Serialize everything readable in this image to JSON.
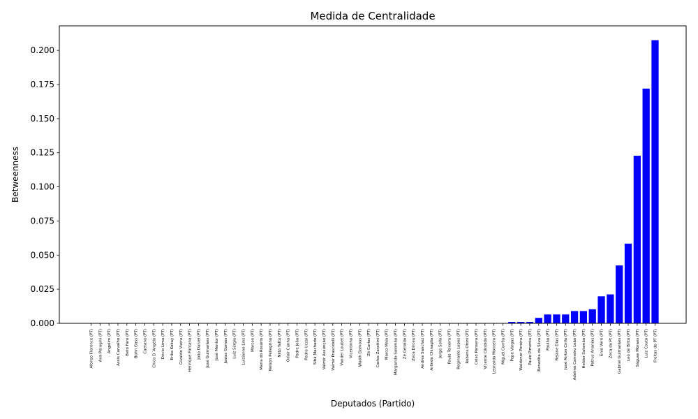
{
  "chart_data": {
    "type": "bar",
    "title": "Medida de Centralidade",
    "xlabel": "Deputados (Partido)",
    "ylabel": "Betweenness",
    "ylim": [
      0,
      0.218
    ],
    "yticks": [
      "0.000",
      "0.025",
      "0.050",
      "0.075",
      "0.100",
      "0.125",
      "0.150",
      "0.175",
      "0.200"
    ],
    "bar_color": "#0000ff",
    "grid": false,
    "categories": [
      "Afonso Florence (PT)",
      "Ana Perugini (PT)",
      "Angelim (PT)",
      "Assis Carvalho (PT)",
      "Beto Faro (PT)",
      "Bohn Gass (PT)",
      "Caetano (PT)",
      "Chico D´Angelo (PT)",
      "Décio Lima (PT)",
      "Erika Kokay (PT)",
      "Givaldo Vieira (PT)",
      "Henrique Fontana (PT)",
      "João Daniel (PT)",
      "José Guimarães (PT)",
      "José Mentor (PT)",
      "Josias Gomes (PT)",
      "Luiz Sérgio (PT)",
      "Luizianne Lins (PT)",
      "Marcon (PT)",
      "Maria do Rosário (PT)",
      "Nelson Pellegrino (PT)",
      "Nilto Tatto (PT)",
      "Odair Cunha (PT)",
      "Padre João (PT)",
      "Pedro Uczai (PT)",
      "Sibá Machado (PT)",
      "Valmir Assunção (PT)",
      "Valmir Prascidelli (PT)",
      "Vander Loubet (PT)",
      "Vicentinho (PT)",
      "Wadih Damous (PT)",
      "Zé Carlos (PT)",
      "Carlos Zarattini (PT)",
      "Marco Maia (PT)",
      "Margarida Salomão (PT)",
      "Zé Geraldo (PT)",
      "Zeca Dirceu (PT)",
      "Andres Sanchez (PT)",
      "Arlindo Chinaglia (PT)",
      "Jorge Solla (PT)",
      "Paulo Teixeira (PT)",
      "Reginaldo Lopes (PT)",
      "Rubens Otoni (PT)",
      "Celso Pansera (PT)",
      "Vicente Cândido (PT)",
      "Leonardo Monteiro (PT)",
      "Miguel Corrêa (PT)",
      "Pepe Vargas (PT)",
      "Waldenor Pereira (PT)",
      "Paulo Pimenta (PT)",
      "Benedita da Silva (PT)",
      "Paulão (PT)",
      "Rejane Dias (PT)",
      "José Airton Cirilo (PT)",
      "Adelmo Carneiro Leão (PT)",
      "Helder Salomão (PT)",
      "Patrus Ananias (PT)",
      "Enio Verri (PT)",
      "Zeca do Pt (PT)",
      "Gabriel Guimarães (PT)",
      "Leo de Brito (PT)",
      "Ságuas Moraes (PT)",
      "Luiz Couto (PT)",
      "Freitas do PT (PT)"
    ],
    "values": [
      0,
      0,
      0,
      0,
      0,
      0,
      0,
      0,
      0,
      0,
      0,
      0,
      0,
      0,
      0,
      0,
      0,
      0,
      0,
      0,
      0,
      0,
      0,
      0,
      0,
      0,
      0,
      0,
      0,
      0,
      0,
      0,
      0,
      0,
      0,
      0,
      0,
      0,
      0,
      0,
      0,
      0,
      0,
      0,
      0,
      0,
      0,
      0.001,
      0.001,
      0.001,
      0.004,
      0.0065,
      0.0065,
      0.0065,
      0.009,
      0.009,
      0.0103,
      0.0198,
      0.0212,
      0.0424,
      0.0584,
      0.1228,
      0.172,
      0.2075
    ]
  }
}
